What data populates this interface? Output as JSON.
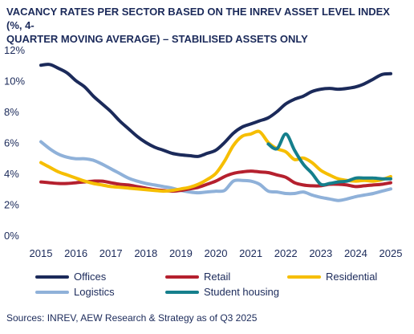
{
  "chart_data": {
    "type": "line",
    "title": "VACANCY RATES PER SECTOR BASED ON THE INREV ASSET LEVEL INDEX (%, 4-",
    "subtitle": "QUARTER MOVING AVERAGE) – STABILISED ASSETS ONLY",
    "xlabel": "",
    "ylabel": "",
    "xlim": [
      2015,
      2025
    ],
    "ylim": [
      0,
      12
    ],
    "yticks": [
      "0%",
      "2%",
      "4%",
      "6%",
      "8%",
      "10%",
      "12%"
    ],
    "xticks": [
      "2015",
      "2016",
      "2017",
      "2018",
      "2019",
      "2020",
      "2021",
      "2022",
      "2023",
      "2024",
      "2025"
    ],
    "grid": false,
    "legend_position": "bottom",
    "series": [
      {
        "name": "Offices",
        "color": "#1b2a5a",
        "points": [
          [
            2015,
            11.0
          ],
          [
            2015.25,
            11.05
          ],
          [
            2015.5,
            10.8
          ],
          [
            2015.75,
            10.5
          ],
          [
            2016,
            10.0
          ],
          [
            2016.25,
            9.6
          ],
          [
            2016.5,
            9.0
          ],
          [
            2016.75,
            8.5
          ],
          [
            2017,
            8.0
          ],
          [
            2017.25,
            7.4
          ],
          [
            2017.5,
            6.9
          ],
          [
            2017.75,
            6.4
          ],
          [
            2018,
            6.0
          ],
          [
            2018.25,
            5.7
          ],
          [
            2018.5,
            5.5
          ],
          [
            2018.75,
            5.3
          ],
          [
            2019,
            5.2
          ],
          [
            2019.25,
            5.15
          ],
          [
            2019.5,
            5.1
          ],
          [
            2019.75,
            5.3
          ],
          [
            2020,
            5.5
          ],
          [
            2020.25,
            6.0
          ],
          [
            2020.5,
            6.6
          ],
          [
            2020.75,
            7.0
          ],
          [
            2021,
            7.2
          ],
          [
            2021.25,
            7.4
          ],
          [
            2021.5,
            7.6
          ],
          [
            2021.75,
            8.0
          ],
          [
            2022,
            8.5
          ],
          [
            2022.25,
            8.8
          ],
          [
            2022.5,
            9.0
          ],
          [
            2022.75,
            9.3
          ],
          [
            2023,
            9.45
          ],
          [
            2023.25,
            9.5
          ],
          [
            2023.5,
            9.45
          ],
          [
            2023.75,
            9.5
          ],
          [
            2024,
            9.6
          ],
          [
            2024.25,
            9.8
          ],
          [
            2024.5,
            10.1
          ],
          [
            2024.75,
            10.4
          ],
          [
            2025,
            10.45
          ]
        ]
      },
      {
        "name": "Retail",
        "color": "#b5202e",
        "points": [
          [
            2015,
            3.45
          ],
          [
            2015.25,
            3.4
          ],
          [
            2015.5,
            3.35
          ],
          [
            2015.75,
            3.35
          ],
          [
            2016,
            3.4
          ],
          [
            2016.25,
            3.45
          ],
          [
            2016.5,
            3.5
          ],
          [
            2016.75,
            3.5
          ],
          [
            2017,
            3.4
          ],
          [
            2017.25,
            3.3
          ],
          [
            2017.5,
            3.25
          ],
          [
            2017.75,
            3.15
          ],
          [
            2018,
            3.05
          ],
          [
            2018.25,
            2.95
          ],
          [
            2018.5,
            2.9
          ],
          [
            2018.75,
            2.85
          ],
          [
            2019,
            2.9
          ],
          [
            2019.25,
            3.0
          ],
          [
            2019.5,
            3.1
          ],
          [
            2019.75,
            3.3
          ],
          [
            2020,
            3.5
          ],
          [
            2020.25,
            3.8
          ],
          [
            2020.5,
            4.0
          ],
          [
            2020.75,
            4.1
          ],
          [
            2021,
            4.15
          ],
          [
            2021.25,
            4.1
          ],
          [
            2021.5,
            4.05
          ],
          [
            2021.75,
            3.9
          ],
          [
            2022,
            3.75
          ],
          [
            2022.25,
            3.4
          ],
          [
            2022.5,
            3.25
          ],
          [
            2022.75,
            3.2
          ],
          [
            2023,
            3.2
          ],
          [
            2023.25,
            3.3
          ],
          [
            2023.5,
            3.3
          ],
          [
            2023.75,
            3.25
          ],
          [
            2024,
            3.15
          ],
          [
            2024.25,
            3.2
          ],
          [
            2024.5,
            3.25
          ],
          [
            2024.75,
            3.3
          ],
          [
            2025,
            3.4
          ]
        ]
      },
      {
        "name": "Residential",
        "color": "#f6be00",
        "points": [
          [
            2015,
            4.7
          ],
          [
            2015.25,
            4.4
          ],
          [
            2015.5,
            4.1
          ],
          [
            2015.75,
            3.9
          ],
          [
            2016,
            3.7
          ],
          [
            2016.25,
            3.5
          ],
          [
            2016.5,
            3.35
          ],
          [
            2016.75,
            3.25
          ],
          [
            2017,
            3.15
          ],
          [
            2017.25,
            3.1
          ],
          [
            2017.5,
            3.05
          ],
          [
            2017.75,
            3.0
          ],
          [
            2018,
            2.95
          ],
          [
            2018.25,
            2.9
          ],
          [
            2018.5,
            2.85
          ],
          [
            2018.75,
            2.9
          ],
          [
            2019,
            3.0
          ],
          [
            2019.25,
            3.1
          ],
          [
            2019.5,
            3.3
          ],
          [
            2019.75,
            3.6
          ],
          [
            2020,
            4.0
          ],
          [
            2020.25,
            4.8
          ],
          [
            2020.5,
            5.8
          ],
          [
            2020.75,
            6.4
          ],
          [
            2021,
            6.55
          ],
          [
            2021.25,
            6.7
          ],
          [
            2021.5,
            6.0
          ],
          [
            2021.75,
            5.6
          ],
          [
            2022,
            5.4
          ],
          [
            2022.25,
            4.9
          ],
          [
            2022.5,
            5.0
          ],
          [
            2022.75,
            4.7
          ],
          [
            2023,
            4.2
          ],
          [
            2023.25,
            3.9
          ],
          [
            2023.5,
            3.65
          ],
          [
            2023.75,
            3.55
          ],
          [
            2024,
            3.5
          ],
          [
            2024.25,
            3.55
          ],
          [
            2024.5,
            3.5
          ],
          [
            2024.75,
            3.6
          ],
          [
            2025,
            3.8
          ]
        ]
      },
      {
        "name": "Logistics",
        "color": "#8fb1d9",
        "points": [
          [
            2015,
            6.05
          ],
          [
            2015.25,
            5.6
          ],
          [
            2015.5,
            5.25
          ],
          [
            2015.75,
            5.05
          ],
          [
            2016,
            4.95
          ],
          [
            2016.25,
            4.95
          ],
          [
            2016.5,
            4.85
          ],
          [
            2016.75,
            4.6
          ],
          [
            2017,
            4.3
          ],
          [
            2017.25,
            4.0
          ],
          [
            2017.5,
            3.7
          ],
          [
            2017.75,
            3.5
          ],
          [
            2018,
            3.35
          ],
          [
            2018.25,
            3.25
          ],
          [
            2018.5,
            3.15
          ],
          [
            2018.75,
            3.05
          ],
          [
            2019,
            2.9
          ],
          [
            2019.25,
            2.8
          ],
          [
            2019.5,
            2.75
          ],
          [
            2019.75,
            2.8
          ],
          [
            2020,
            2.85
          ],
          [
            2020.25,
            2.9
          ],
          [
            2020.5,
            3.5
          ],
          [
            2020.75,
            3.55
          ],
          [
            2021,
            3.5
          ],
          [
            2021.25,
            3.3
          ],
          [
            2021.5,
            2.85
          ],
          [
            2021.75,
            2.8
          ],
          [
            2022,
            2.7
          ],
          [
            2022.25,
            2.7
          ],
          [
            2022.5,
            2.8
          ],
          [
            2022.75,
            2.6
          ],
          [
            2023,
            2.45
          ],
          [
            2023.25,
            2.35
          ],
          [
            2023.5,
            2.25
          ],
          [
            2023.75,
            2.35
          ],
          [
            2024,
            2.5
          ],
          [
            2024.25,
            2.6
          ],
          [
            2024.5,
            2.7
          ],
          [
            2024.75,
            2.85
          ],
          [
            2025,
            3.0
          ]
        ]
      },
      {
        "name": "Student housing",
        "color": "#157f8c",
        "points": [
          [
            2021.5,
            5.9
          ],
          [
            2021.75,
            5.6
          ],
          [
            2022,
            6.55
          ],
          [
            2022.25,
            5.5
          ],
          [
            2022.5,
            4.6
          ],
          [
            2022.75,
            4.0
          ],
          [
            2023,
            3.3
          ],
          [
            2023.25,
            3.35
          ],
          [
            2023.5,
            3.45
          ],
          [
            2023.75,
            3.5
          ],
          [
            2024,
            3.7
          ],
          [
            2024.25,
            3.7
          ],
          [
            2024.5,
            3.7
          ],
          [
            2024.75,
            3.65
          ],
          [
            2025,
            3.65
          ]
        ]
      }
    ]
  },
  "source": "Sources: INREV, AEW Research & Strategy as of Q3 2025"
}
